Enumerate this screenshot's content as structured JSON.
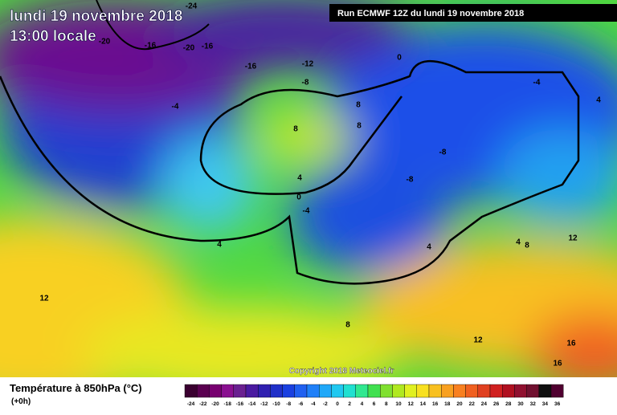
{
  "header": {
    "date": "lundi 19 novembre 2018",
    "time": "13:00 locale",
    "run": "Run ECMWF 12Z du lundi 19 novembre 2018"
  },
  "map": {
    "contour_labels": [
      -24,
      -20,
      -16,
      -20,
      -16,
      -16,
      -12,
      -8,
      0,
      -4,
      -4,
      4,
      8,
      8,
      8,
      -8,
      -8,
      4,
      0,
      -4,
      4,
      4,
      4,
      8,
      12,
      12,
      8,
      12,
      16,
      16
    ],
    "copyright": "Copyright 2018 Meteociel.fr"
  },
  "legend": {
    "title": "Température à 850hPa (°C)",
    "step": "(+0h)",
    "labels": [
      -24,
      -22,
      -20,
      -18,
      -16,
      -14,
      -12,
      -10,
      -8,
      -6,
      -4,
      -2,
      0,
      2,
      4,
      6,
      8,
      10,
      12,
      14,
      16,
      18,
      20,
      22,
      24,
      26,
      28,
      30,
      32,
      34,
      36
    ],
    "colors": [
      "#3a0030",
      "#5a0050",
      "#780070",
      "#8a1090",
      "#6a2090",
      "#4a1aa0",
      "#3020b0",
      "#2030c8",
      "#1a40e0",
      "#2060f0",
      "#2080f8",
      "#20a8f8",
      "#20c8f0",
      "#20e0d0",
      "#30e890",
      "#40e050",
      "#80e030",
      "#b0e820",
      "#e0f020",
      "#f8e020",
      "#f8c020",
      "#f8a020",
      "#f88020",
      "#f06020",
      "#e04020",
      "#d02020",
      "#b01020",
      "#901030",
      "#701030",
      "#101010",
      "#500030"
    ]
  }
}
